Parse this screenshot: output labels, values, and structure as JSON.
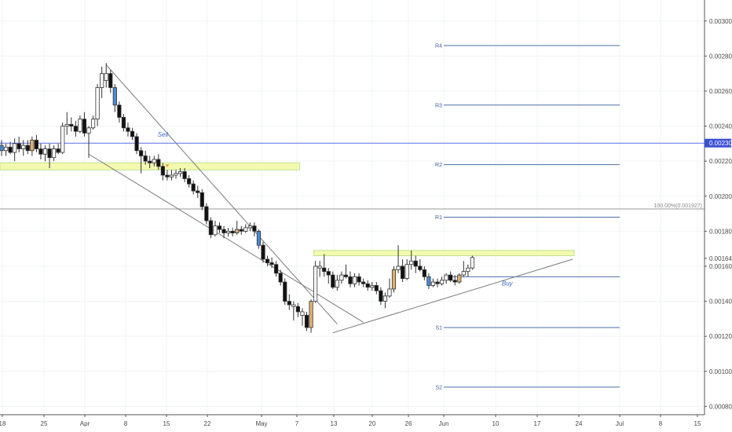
{
  "chart_data": {
    "type": "candlestick",
    "x_ticks": [
      "18",
      "25",
      "Apr",
      "8",
      "15",
      "22",
      "May",
      "7",
      "13",
      "20",
      "26",
      "Jun",
      "10",
      "17",
      "24",
      "Jul",
      "8",
      "15"
    ],
    "y_ticks": [
      "0.003000",
      "0.002800",
      "0.002600",
      "0.002400",
      "0.002200",
      "0.002000",
      "0.001800",
      "0.001600",
      "0.001400",
      "0.001200",
      "0.001000",
      "0.000800"
    ],
    "ylim": [
      0.00075,
      0.00315
    ],
    "current_price_label": "0.001645",
    "current_price": 0.001645,
    "horizontal_line_label": "0.002303",
    "horizontal_line_value": 0.002303,
    "fib_level_label": "100.00%(0.001927)",
    "fib_level_value": 0.001927,
    "pivots": [
      {
        "label": "R4",
        "value": 0.00286
      },
      {
        "label": "R3",
        "value": 0.00252
      },
      {
        "label": "R2",
        "value": 0.00218
      },
      {
        "label": "R1",
        "value": 0.00188
      },
      {
        "label": "S1",
        "value": 0.00125
      },
      {
        "label": "S2",
        "value": 0.00091
      }
    ],
    "pivot_extra_line": 0.00154,
    "zones": [
      {
        "from_idx": 0,
        "to_idx": 68,
        "low": 0.00215,
        "high": 0.00219,
        "color": "#f4f9b0"
      },
      {
        "from_idx": 72,
        "to_idx": 131,
        "low": 0.00166,
        "high": 0.00169,
        "color": "#f4f9b0"
      }
    ],
    "annotations": [
      {
        "text": "Sell",
        "idx": 37,
        "value": 0.00234
      },
      {
        "text": "Buy",
        "idx": 116,
        "value": 0.00149
      }
    ],
    "trendlines": [
      {
        "from": [
          24,
          0.00275
        ],
        "to": [
          77,
          0.00127
        ]
      },
      {
        "from": [
          20,
          0.00224
        ],
        "to": [
          83,
          0.00128
        ]
      },
      {
        "from": [
          76,
          0.00122
        ],
        "to": [
          131,
          0.00164
        ]
      }
    ],
    "candles": [
      {
        "o": 0.00229,
        "h": 0.00232,
        "l": 0.00223,
        "c": 0.00226,
        "col": "blue"
      },
      {
        "o": 0.00226,
        "h": 0.0023,
        "l": 0.00223,
        "c": 0.00228,
        "col": "white"
      },
      {
        "o": 0.00228,
        "h": 0.00231,
        "l": 0.00224,
        "c": 0.00225,
        "col": "black"
      },
      {
        "o": 0.00225,
        "h": 0.00233,
        "l": 0.0022,
        "c": 0.0023,
        "col": "white"
      },
      {
        "o": 0.0023,
        "h": 0.00234,
        "l": 0.00225,
        "c": 0.00227,
        "col": "black"
      },
      {
        "o": 0.00227,
        "h": 0.00232,
        "l": 0.00223,
        "c": 0.00229,
        "col": "white"
      },
      {
        "o": 0.00229,
        "h": 0.00232,
        "l": 0.00224,
        "c": 0.00226,
        "col": "black"
      },
      {
        "o": 0.00226,
        "h": 0.00234,
        "l": 0.00223,
        "c": 0.00232,
        "col": "orange"
      },
      {
        "o": 0.00232,
        "h": 0.00235,
        "l": 0.00225,
        "c": 0.00227,
        "col": "black"
      },
      {
        "o": 0.00227,
        "h": 0.0023,
        "l": 0.00221,
        "c": 0.00224,
        "col": "black"
      },
      {
        "o": 0.00224,
        "h": 0.00229,
        "l": 0.0022,
        "c": 0.00227,
        "col": "white"
      },
      {
        "o": 0.00227,
        "h": 0.0023,
        "l": 0.00216,
        "c": 0.00222,
        "col": "black"
      },
      {
        "o": 0.00222,
        "h": 0.00229,
        "l": 0.0022,
        "c": 0.00227,
        "col": "white"
      },
      {
        "o": 0.00227,
        "h": 0.0023,
        "l": 0.00224,
        "c": 0.00225,
        "col": "black"
      },
      {
        "o": 0.00225,
        "h": 0.00242,
        "l": 0.00224,
        "c": 0.0024,
        "col": "white"
      },
      {
        "o": 0.0024,
        "h": 0.00248,
        "l": 0.00235,
        "c": 0.00241,
        "col": "white"
      },
      {
        "o": 0.00241,
        "h": 0.00245,
        "l": 0.00237,
        "c": 0.0024,
        "col": "black"
      },
      {
        "o": 0.0024,
        "h": 0.00243,
        "l": 0.00234,
        "c": 0.00237,
        "col": "black"
      },
      {
        "o": 0.00237,
        "h": 0.00246,
        "l": 0.00236,
        "c": 0.00244,
        "col": "white"
      },
      {
        "o": 0.00244,
        "h": 0.00248,
        "l": 0.00234,
        "c": 0.00236,
        "col": "black"
      },
      {
        "o": 0.00236,
        "h": 0.0024,
        "l": 0.00222,
        "c": 0.00239,
        "col": "white"
      },
      {
        "o": 0.00239,
        "h": 0.00246,
        "l": 0.00238,
        "c": 0.00244,
        "col": "white"
      },
      {
        "o": 0.00244,
        "h": 0.00264,
        "l": 0.0024,
        "c": 0.00262,
        "col": "white"
      },
      {
        "o": 0.00262,
        "h": 0.00274,
        "l": 0.00256,
        "c": 0.0027,
        "col": "white"
      },
      {
        "o": 0.0027,
        "h": 0.00276,
        "l": 0.00262,
        "c": 0.00266,
        "col": "white"
      },
      {
        "o": 0.0027,
        "h": 0.00272,
        "l": 0.00259,
        "c": 0.00262,
        "col": "black"
      },
      {
        "o": 0.00262,
        "h": 0.00264,
        "l": 0.00248,
        "c": 0.00252,
        "col": "blue"
      },
      {
        "o": 0.00252,
        "h": 0.00254,
        "l": 0.00242,
        "c": 0.00245,
        "col": "black"
      },
      {
        "o": 0.00245,
        "h": 0.00247,
        "l": 0.00237,
        "c": 0.00239,
        "col": "black"
      },
      {
        "o": 0.00239,
        "h": 0.00242,
        "l": 0.00234,
        "c": 0.00237,
        "col": "black"
      },
      {
        "o": 0.00237,
        "h": 0.00239,
        "l": 0.00232,
        "c": 0.00234,
        "col": "black"
      },
      {
        "o": 0.00234,
        "h": 0.00236,
        "l": 0.00224,
        "c": 0.00226,
        "col": "black"
      },
      {
        "o": 0.00226,
        "h": 0.00228,
        "l": 0.00213,
        "c": 0.00223,
        "col": "black"
      },
      {
        "o": 0.00223,
        "h": 0.00226,
        "l": 0.00218,
        "c": 0.0022,
        "col": "black"
      },
      {
        "o": 0.0022,
        "h": 0.00223,
        "l": 0.00216,
        "c": 0.00219,
        "col": "black"
      },
      {
        "o": 0.00219,
        "h": 0.00223,
        "l": 0.00217,
        "c": 0.00221,
        "col": "white"
      },
      {
        "o": 0.00221,
        "h": 0.00224,
        "l": 0.00215,
        "c": 0.00217,
        "col": "black"
      },
      {
        "o": 0.00217,
        "h": 0.00219,
        "l": 0.00209,
        "c": 0.00212,
        "col": "black"
      },
      {
        "o": 0.00212,
        "h": 0.00215,
        "l": 0.00209,
        "c": 0.00211,
        "col": "black"
      },
      {
        "o": 0.00211,
        "h": 0.00215,
        "l": 0.00209,
        "c": 0.00212,
        "col": "white"
      },
      {
        "o": 0.00212,
        "h": 0.00215,
        "l": 0.0021,
        "c": 0.00213,
        "col": "white"
      },
      {
        "o": 0.00213,
        "h": 0.00216,
        "l": 0.00211,
        "c": 0.00214,
        "col": "white"
      },
      {
        "o": 0.00214,
        "h": 0.00216,
        "l": 0.00208,
        "c": 0.0021,
        "col": "black"
      },
      {
        "o": 0.0021,
        "h": 0.00212,
        "l": 0.00205,
        "c": 0.00207,
        "col": "black"
      },
      {
        "o": 0.00207,
        "h": 0.00209,
        "l": 0.00201,
        "c": 0.00203,
        "col": "black"
      },
      {
        "o": 0.00203,
        "h": 0.00206,
        "l": 0.00199,
        "c": 0.00202,
        "col": "black"
      },
      {
        "o": 0.00202,
        "h": 0.00204,
        "l": 0.00192,
        "c": 0.00194,
        "col": "black"
      },
      {
        "o": 0.00194,
        "h": 0.00196,
        "l": 0.00184,
        "c": 0.00186,
        "col": "black"
      },
      {
        "o": 0.00186,
        "h": 0.00188,
        "l": 0.00176,
        "c": 0.00178,
        "col": "black"
      },
      {
        "o": 0.00178,
        "h": 0.00186,
        "l": 0.00177,
        "c": 0.00183,
        "col": "white"
      },
      {
        "o": 0.00183,
        "h": 0.00185,
        "l": 0.00179,
        "c": 0.00181,
        "col": "black"
      },
      {
        "o": 0.00181,
        "h": 0.00183,
        "l": 0.00176,
        "c": 0.00179,
        "col": "black"
      },
      {
        "o": 0.00179,
        "h": 0.00182,
        "l": 0.00177,
        "c": 0.0018,
        "col": "white"
      },
      {
        "o": 0.0018,
        "h": 0.00182,
        "l": 0.00177,
        "c": 0.00179,
        "col": "black"
      },
      {
        "o": 0.00179,
        "h": 0.00186,
        "l": 0.00178,
        "c": 0.00181,
        "col": "orange"
      },
      {
        "o": 0.00181,
        "h": 0.00183,
        "l": 0.00178,
        "c": 0.0018,
        "col": "black"
      },
      {
        "o": 0.0018,
        "h": 0.00184,
        "l": 0.00179,
        "c": 0.00182,
        "col": "white"
      },
      {
        "o": 0.00182,
        "h": 0.00185,
        "l": 0.0018,
        "c": 0.00183,
        "col": "white"
      },
      {
        "o": 0.00183,
        "h": 0.00185,
        "l": 0.00177,
        "c": 0.0018,
        "col": "black"
      },
      {
        "o": 0.0018,
        "h": 0.00181,
        "l": 0.0017,
        "c": 0.00172,
        "col": "blue"
      },
      {
        "o": 0.00172,
        "h": 0.00174,
        "l": 0.00162,
        "c": 0.00164,
        "col": "black"
      },
      {
        "o": 0.00164,
        "h": 0.00166,
        "l": 0.0016,
        "c": 0.00162,
        "col": "black"
      },
      {
        "o": 0.00162,
        "h": 0.00165,
        "l": 0.00159,
        "c": 0.00161,
        "col": "black"
      },
      {
        "o": 0.00161,
        "h": 0.00163,
        "l": 0.00154,
        "c": 0.00156,
        "col": "black"
      },
      {
        "o": 0.00156,
        "h": 0.00158,
        "l": 0.00149,
        "c": 0.00151,
        "col": "black"
      },
      {
        "o": 0.00151,
        "h": 0.00153,
        "l": 0.00138,
        "c": 0.0014,
        "col": "black"
      },
      {
        "o": 0.0014,
        "h": 0.00144,
        "l": 0.00135,
        "c": 0.00138,
        "col": "black"
      },
      {
        "o": 0.00138,
        "h": 0.0014,
        "l": 0.00129,
        "c": 0.00137,
        "col": "white"
      },
      {
        "o": 0.00137,
        "h": 0.00139,
        "l": 0.00131,
        "c": 0.00134,
        "col": "black"
      },
      {
        "o": 0.00134,
        "h": 0.00136,
        "l": 0.00126,
        "c": 0.00132,
        "col": "white"
      },
      {
        "o": 0.00132,
        "h": 0.00134,
        "l": 0.00123,
        "c": 0.00125,
        "col": "black"
      },
      {
        "o": 0.00125,
        "h": 0.00141,
        "l": 0.00122,
        "c": 0.0014,
        "col": "orange"
      },
      {
        "o": 0.0014,
        "h": 0.00163,
        "l": 0.00139,
        "c": 0.0016,
        "col": "white"
      },
      {
        "o": 0.0016,
        "h": 0.00163,
        "l": 0.00154,
        "c": 0.00159,
        "col": "white"
      },
      {
        "o": 0.00159,
        "h": 0.00167,
        "l": 0.00154,
        "c": 0.00157,
        "col": "black"
      },
      {
        "o": 0.00157,
        "h": 0.00159,
        "l": 0.0015,
        "c": 0.00155,
        "col": "black"
      },
      {
        "o": 0.00155,
        "h": 0.00157,
        "l": 0.00147,
        "c": 0.00148,
        "col": "black"
      },
      {
        "o": 0.00148,
        "h": 0.00155,
        "l": 0.00146,
        "c": 0.00152,
        "col": "white"
      },
      {
        "o": 0.00152,
        "h": 0.00157,
        "l": 0.0015,
        "c": 0.00155,
        "col": "white"
      },
      {
        "o": 0.00155,
        "h": 0.00161,
        "l": 0.00153,
        "c": 0.00154,
        "col": "black"
      },
      {
        "o": 0.00154,
        "h": 0.00157,
        "l": 0.00148,
        "c": 0.0015,
        "col": "black"
      },
      {
        "o": 0.0015,
        "h": 0.00156,
        "l": 0.00148,
        "c": 0.00154,
        "col": "white"
      },
      {
        "o": 0.00154,
        "h": 0.00156,
        "l": 0.00149,
        "c": 0.00151,
        "col": "black"
      },
      {
        "o": 0.00151,
        "h": 0.00153,
        "l": 0.00148,
        "c": 0.0015,
        "col": "black"
      },
      {
        "o": 0.0015,
        "h": 0.00152,
        "l": 0.00146,
        "c": 0.00148,
        "col": "black"
      },
      {
        "o": 0.00148,
        "h": 0.00151,
        "l": 0.00146,
        "c": 0.00149,
        "col": "white"
      },
      {
        "o": 0.00149,
        "h": 0.00151,
        "l": 0.00144,
        "c": 0.00146,
        "col": "black"
      },
      {
        "o": 0.00146,
        "h": 0.00148,
        "l": 0.00138,
        "c": 0.0014,
        "col": "black"
      },
      {
        "o": 0.0014,
        "h": 0.00145,
        "l": 0.00136,
        "c": 0.00143,
        "col": "white"
      },
      {
        "o": 0.00143,
        "h": 0.00153,
        "l": 0.00142,
        "c": 0.00147,
        "col": "white"
      },
      {
        "o": 0.00147,
        "h": 0.0016,
        "l": 0.00145,
        "c": 0.00158,
        "col": "orange"
      },
      {
        "o": 0.00158,
        "h": 0.00172,
        "l": 0.00156,
        "c": 0.0016,
        "col": "white"
      },
      {
        "o": 0.0016,
        "h": 0.00164,
        "l": 0.00151,
        "c": 0.00153,
        "col": "black"
      },
      {
        "o": 0.00153,
        "h": 0.00164,
        "l": 0.00152,
        "c": 0.00161,
        "col": "white"
      },
      {
        "o": 0.00161,
        "h": 0.00169,
        "l": 0.00158,
        "c": 0.00163,
        "col": "white"
      },
      {
        "o": 0.00163,
        "h": 0.00166,
        "l": 0.00156,
        "c": 0.0016,
        "col": "black"
      },
      {
        "o": 0.0016,
        "h": 0.00164,
        "l": 0.00157,
        "c": 0.00158,
        "col": "black"
      },
      {
        "o": 0.00158,
        "h": 0.0016,
        "l": 0.00152,
        "c": 0.00154,
        "col": "black"
      },
      {
        "o": 0.00154,
        "h": 0.00156,
        "l": 0.00147,
        "c": 0.00149,
        "col": "blue"
      },
      {
        "o": 0.00149,
        "h": 0.00153,
        "l": 0.00148,
        "c": 0.00151,
        "col": "white"
      },
      {
        "o": 0.00151,
        "h": 0.00153,
        "l": 0.00148,
        "c": 0.0015,
        "col": "black"
      },
      {
        "o": 0.0015,
        "h": 0.00154,
        "l": 0.00149,
        "c": 0.00152,
        "col": "white"
      },
      {
        "o": 0.00152,
        "h": 0.00156,
        "l": 0.0015,
        "c": 0.00155,
        "col": "white"
      },
      {
        "o": 0.00155,
        "h": 0.00157,
        "l": 0.00151,
        "c": 0.00152,
        "col": "black"
      },
      {
        "o": 0.00152,
        "h": 0.00155,
        "l": 0.00149,
        "c": 0.00151,
        "col": "black"
      },
      {
        "o": 0.00151,
        "h": 0.00156,
        "l": 0.0015,
        "c": 0.00155,
        "col": "orange"
      },
      {
        "o": 0.00155,
        "h": 0.00163,
        "l": 0.00154,
        "c": 0.00157,
        "col": "white"
      },
      {
        "o": 0.00157,
        "h": 0.00161,
        "l": 0.00154,
        "c": 0.00159,
        "col": "white"
      },
      {
        "o": 0.00159,
        "h": 0.00166,
        "l": 0.00158,
        "c": 0.00165,
        "col": "white"
      }
    ]
  }
}
